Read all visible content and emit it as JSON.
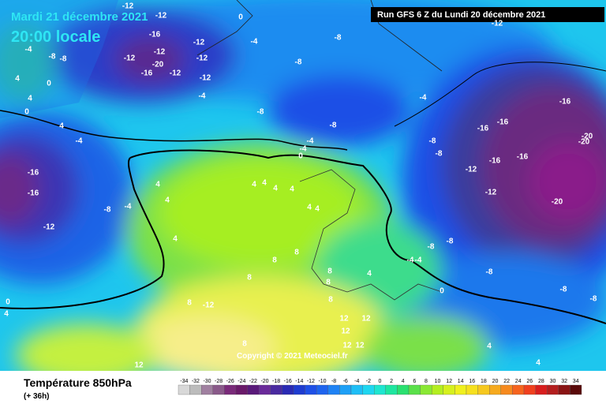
{
  "header": {
    "date": "Mardi 21 décembre 2021",
    "time": "20:00 locale",
    "run": "Run GFS 6 Z du Lundi 20 décembre 2021"
  },
  "footer": {
    "title": "Température 850hPa",
    "lead": "(+ 36h)",
    "copyright": "Copyright © 2021 Meteociel.fr"
  },
  "legend": {
    "ticks": [
      -34,
      -32,
      -30,
      -28,
      -26,
      -24,
      -22,
      -20,
      -18,
      -16,
      -14,
      -12,
      -10,
      -8,
      -6,
      -4,
      -2,
      0,
      2,
      4,
      6,
      8,
      10,
      12,
      14,
      16,
      18,
      20,
      22,
      24,
      26,
      28,
      30,
      32,
      34
    ]
  },
  "map_labels": [
    -12,
    -12,
    0,
    -16,
    -12,
    -4,
    -8,
    -12,
    -12,
    -12,
    -8,
    -8,
    -4,
    -16,
    -20,
    -12,
    -12,
    -12,
    4,
    0,
    -8,
    -4,
    -8,
    -4,
    -8,
    4,
    0,
    4,
    -4,
    -4,
    -4,
    0,
    -16,
    -16,
    -16,
    -8,
    -20,
    -8,
    -16,
    -16,
    -12,
    -20,
    -16,
    -16,
    -12,
    -8,
    -4,
    4,
    4,
    4,
    4,
    4,
    4,
    4,
    4,
    -12,
    -20,
    4,
    -8,
    -4,
    -4,
    -8,
    8,
    8,
    -8,
    8,
    4,
    8,
    8,
    8,
    0,
    -8,
    -8,
    8,
    -12,
    0,
    4,
    12,
    12,
    12,
    8,
    12,
    12,
    4,
    4,
    12
  ]
}
